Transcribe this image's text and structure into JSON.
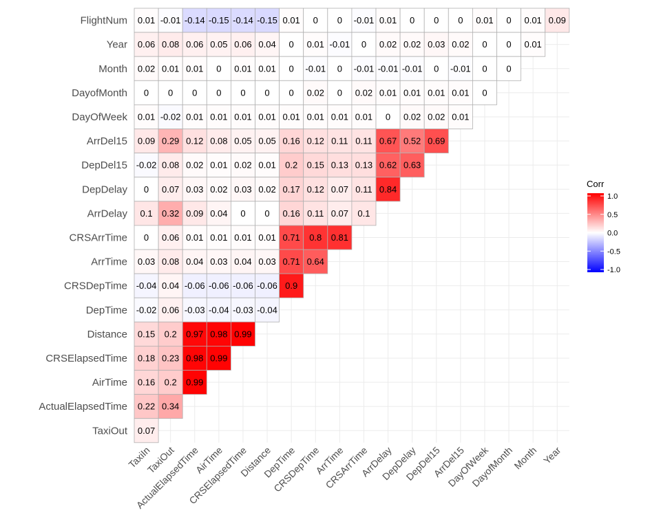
{
  "chart_data": {
    "type": "heatmap",
    "x_labels": [
      "TaxiIn",
      "TaxiOut",
      "ActualElapsedTime",
      "AirTime",
      "CRSElapsedTime",
      "Distance",
      "DepTime",
      "CRSDepTime",
      "ArrTime",
      "CRSArrTime",
      "ArrDelay",
      "DepDelay",
      "DepDel15",
      "ArrDel15",
      "DayOfWeek",
      "DayofMonth",
      "Month",
      "Year"
    ],
    "y_labels": [
      "FlightNum",
      "Year",
      "Month",
      "DayofMonth",
      "DayOfWeek",
      "ArrDel15",
      "DepDel15",
      "DepDelay",
      "ArrDelay",
      "CRSArrTime",
      "ArrTime",
      "CRSDepTime",
      "DepTime",
      "Distance",
      "CRSElapsedTime",
      "AirTime",
      "ActualElapsedTime",
      "TaxiOut"
    ],
    "values": [
      [
        0.01,
        -0.01,
        -0.14,
        -0.15,
        -0.14,
        -0.15,
        0.01,
        0,
        0,
        -0.01,
        0.01,
        0,
        0,
        0,
        0.01,
        0,
        0.01,
        0.09
      ],
      [
        0.06,
        0.08,
        0.06,
        0.05,
        0.06,
        0.04,
        0,
        0.01,
        -0.01,
        0,
        0.02,
        0.02,
        0.03,
        0.02,
        0,
        0,
        0.01
      ],
      [
        0.02,
        0.01,
        0.01,
        0,
        0.01,
        0.01,
        0,
        -0.01,
        0,
        -0.01,
        -0.01,
        -0.01,
        0,
        -0.01,
        0,
        0
      ],
      [
        0,
        0,
        0,
        0,
        0,
        0,
        0,
        0.02,
        0,
        0.02,
        0.01,
        0.01,
        0.01,
        0.01,
        0
      ],
      [
        0.01,
        -0.02,
        0.01,
        0.01,
        0.01,
        0.01,
        0.01,
        0.01,
        0.01,
        0.01,
        0,
        0.02,
        0.02,
        0.01
      ],
      [
        0.09,
        0.29,
        0.12,
        0.08,
        0.05,
        0.05,
        0.16,
        0.12,
        0.11,
        0.11,
        0.67,
        0.52,
        0.69
      ],
      [
        -0.02,
        0.08,
        0.02,
        0.01,
        0.02,
        0.01,
        0.2,
        0.15,
        0.13,
        0.13,
        0.62,
        0.63
      ],
      [
        0,
        0.07,
        0.03,
        0.02,
        0.03,
        0.02,
        0.17,
        0.12,
        0.07,
        0.11,
        0.84
      ],
      [
        0.1,
        0.32,
        0.09,
        0.04,
        0,
        0,
        0.16,
        0.11,
        0.07,
        0.1
      ],
      [
        0,
        0.06,
        0.01,
        0.01,
        0.01,
        0.01,
        0.71,
        0.8,
        0.81
      ],
      [
        0.03,
        0.08,
        0.04,
        0.03,
        0.04,
        0.03,
        0.71,
        0.64
      ],
      [
        -0.04,
        0.04,
        -0.06,
        -0.06,
        -0.06,
        -0.06,
        0.9
      ],
      [
        -0.02,
        0.06,
        -0.03,
        -0.04,
        -0.03,
        -0.04
      ],
      [
        0.15,
        0.2,
        0.97,
        0.98,
        0.99
      ],
      [
        0.18,
        0.23,
        0.98,
        0.99
      ],
      [
        0.16,
        0.2,
        0.99
      ],
      [
        0.22,
        0.34
      ],
      [
        0.07
      ]
    ],
    "legend": {
      "title": "Corr",
      "ticks": [
        1.0,
        0.5,
        0.0,
        -0.5,
        -1.0
      ],
      "tick_labels": [
        "1.0",
        "0.5",
        "0.0",
        "-0.5",
        "-1.0"
      ],
      "placement": "right"
    },
    "colors": {
      "low": "#0000ff",
      "mid": "#ffffff",
      "high": "#ff0000"
    },
    "range": [
      -1,
      1
    ],
    "grid": true
  }
}
